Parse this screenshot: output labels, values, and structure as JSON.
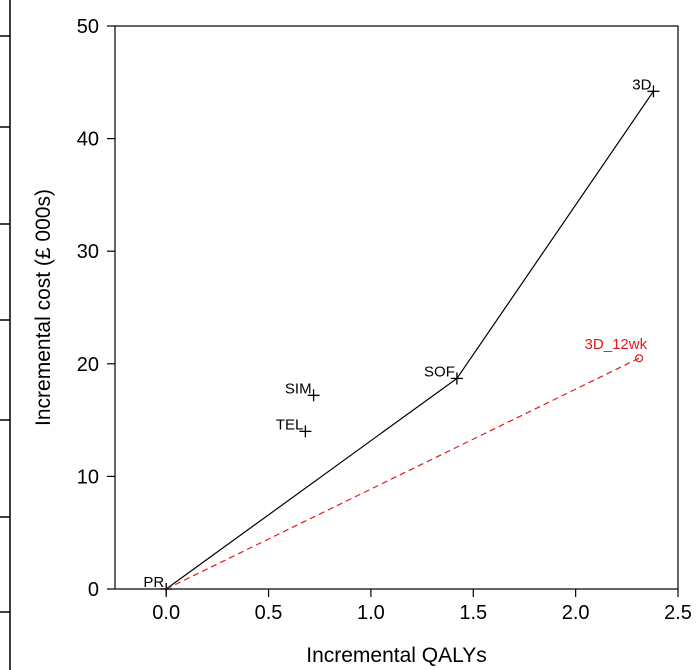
{
  "chart_data": {
    "type": "scatter",
    "title": "",
    "xlabel": "Incremental QALYs",
    "ylabel": "Incremental cost (£ 000s)",
    "xlim": [
      -0.25,
      2.5
    ],
    "ylim": [
      0,
      50
    ],
    "xticks": [
      0.0,
      0.5,
      1.0,
      1.5,
      2.0,
      2.5
    ],
    "xtick_labels": [
      "0.0",
      "0.5",
      "1.0",
      "1.5",
      "2.0",
      "2.5"
    ],
    "yticks": [
      0,
      10,
      20,
      30,
      40,
      50
    ],
    "ytick_labels": [
      "0",
      "10",
      "20",
      "30",
      "40",
      "50"
    ],
    "grid": false,
    "points": [
      {
        "label": "PR",
        "x": 0.0,
        "y": 0.0,
        "color": "#000000",
        "marker": "plus"
      },
      {
        "label": "SIM",
        "x": 0.72,
        "y": 17.2,
        "color": "#000000",
        "marker": "plus"
      },
      {
        "label": "TEL",
        "x": 0.68,
        "y": 14.0,
        "color": "#000000",
        "marker": "plus"
      },
      {
        "label": "SOF",
        "x": 1.42,
        "y": 18.7,
        "color": "#000000",
        "marker": "plus"
      },
      {
        "label": "3D",
        "x": 2.38,
        "y": 44.2,
        "color": "#000000",
        "marker": "plus"
      },
      {
        "label": "3D_12wk",
        "x": 2.31,
        "y": 20.5,
        "color": "#e41a1c",
        "marker": "circle"
      }
    ],
    "lines": [
      {
        "style": "solid",
        "color": "#000000",
        "points": [
          [
            0.0,
            0.0
          ],
          [
            1.42,
            18.7
          ],
          [
            2.38,
            44.2
          ]
        ]
      },
      {
        "style": "dashed",
        "color": "#e41a1c",
        "points": [
          [
            0.0,
            0.0
          ],
          [
            2.31,
            20.5
          ]
        ]
      }
    ]
  }
}
